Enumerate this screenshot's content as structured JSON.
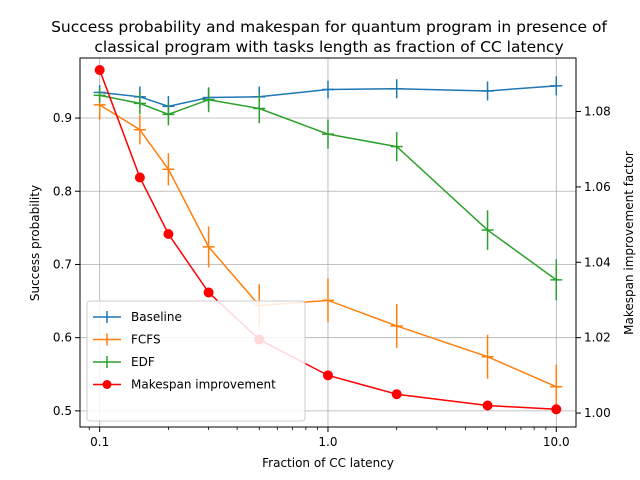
{
  "chart_data": {
    "type": "line",
    "title_lines": [
      "Success probability and makespan for quantum program in presence of",
      "classical program with tasks length as fraction of CC latency"
    ],
    "xlabel": "Fraction of CC latency",
    "ylabel": "Success probability",
    "y2label": "Makespan improvement factor",
    "xscale": "log",
    "xlim": [
      0.082,
      12.2
    ],
    "ylim": [
      0.478,
      0.982
    ],
    "y2lim": [
      0.9963,
      1.0942
    ],
    "x": [
      0.1,
      0.15,
      0.2,
      0.3,
      0.5,
      1.0,
      2.0,
      5.0,
      10.0
    ],
    "xticks": [
      0.1,
      1.0,
      10.0
    ],
    "xtick_labels": [
      "0.1",
      "1.0",
      "10.0"
    ],
    "yticks": [
      0.5,
      0.6,
      0.7,
      0.8,
      0.9
    ],
    "ytick_labels": [
      "0.5",
      "0.6",
      "0.7",
      "0.8",
      "0.9"
    ],
    "y2ticks": [
      1.0,
      1.02,
      1.04,
      1.06,
      1.08
    ],
    "y2tick_labels": [
      "1.00",
      "1.02",
      "1.04",
      "1.06",
      "1.08"
    ],
    "grid": true,
    "legend_position": "lower-left",
    "series": [
      {
        "name": "Baseline",
        "axis": "left",
        "color": "#1f77b4",
        "marker": "plus",
        "values": [
          0.935,
          0.929,
          0.916,
          0.928,
          0.929,
          0.939,
          0.94,
          0.937,
          0.944
        ],
        "errors": [
          0.01,
          0.014,
          0.014,
          0.013,
          0.014,
          0.012,
          0.013,
          0.013,
          0.013
        ]
      },
      {
        "name": "FCFS",
        "axis": "left",
        "color": "#ff7f0e",
        "marker": "plus",
        "values": [
          0.918,
          0.884,
          0.83,
          0.724,
          0.644,
          0.651,
          0.616,
          0.574,
          0.533
        ],
        "errors": [
          0.02,
          0.02,
          0.022,
          0.028,
          0.029,
          0.03,
          0.03,
          0.03,
          0.03
        ]
      },
      {
        "name": "EDF",
        "axis": "left",
        "color": "#2ca02c",
        "marker": "plus",
        "values": [
          0.931,
          0.92,
          0.905,
          0.925,
          0.913,
          0.878,
          0.861,
          0.747,
          0.679
        ],
        "errors": [
          0.01,
          0.015,
          0.015,
          0.017,
          0.02,
          0.02,
          0.02,
          0.027,
          0.028
        ]
      },
      {
        "name": "Makespan improvement",
        "axis": "right",
        "color": "#ff0000",
        "marker": "circle",
        "values": [
          1.091,
          1.0625,
          1.0475,
          1.032,
          1.0195,
          1.01,
          1.005,
          1.002,
          1.001
        ]
      }
    ]
  }
}
